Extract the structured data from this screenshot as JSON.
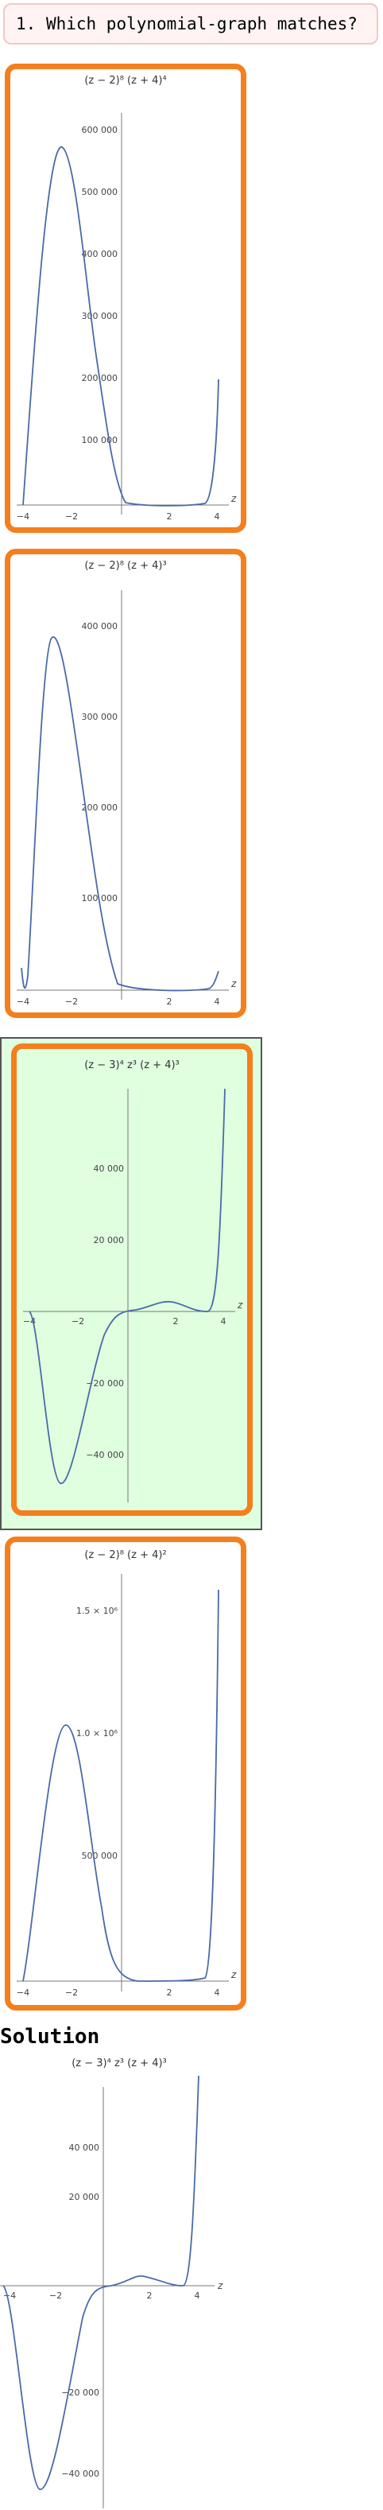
{
  "question": {
    "number": "1.",
    "text": "Which polynomial-graph matches?"
  },
  "solution_label": "Solution",
  "plots": [
    {
      "title": "(z − 2)⁸ (z + 4)⁴",
      "var": "z",
      "xticks": [
        "−4",
        "−2",
        "2",
        "4"
      ],
      "yticks": [
        "100 000",
        "200 000",
        "300 000",
        "400 000",
        "500 000",
        "600 000"
      ],
      "correct": false
    },
    {
      "title": "(z − 2)⁸ (z + 4)³",
      "var": "z",
      "xticks": [
        "−4",
        "−2",
        "2",
        "4"
      ],
      "yticks": [
        "100 000",
        "200 000",
        "300 000",
        "400 000"
      ],
      "correct": false
    },
    {
      "title": "(z − 3)⁴ z³ (z + 4)³",
      "var": "z",
      "xticks": [
        "−4",
        "−2",
        "2",
        "4"
      ],
      "yticks": [
        "−40 000",
        "−20 000",
        "20 000",
        "40 000"
      ],
      "correct": true
    },
    {
      "title": "(z − 2)⁸ (z + 4)²",
      "var": "z",
      "xticks": [
        "−4",
        "−2",
        "2",
        "4"
      ],
      "yticks": [
        "500 000",
        "1.0 × 10⁶",
        "1.5 × 10⁶"
      ],
      "correct": false
    }
  ],
  "solution_plot": {
    "title": "(z − 3)⁴ z³ (z + 4)³",
    "var": "z",
    "xticks": [
      "−4",
      "−2",
      "2",
      "4"
    ],
    "yticks": [
      "−40 000",
      "−20 000",
      "20 000",
      "40 000"
    ]
  },
  "chart_data": [
    {
      "type": "line",
      "title": "(z − 2)⁸ (z + 4)⁴",
      "xlabel": "z",
      "xlim": [
        -4.2,
        4.2
      ],
      "ylim": [
        0,
        620000
      ],
      "series": [
        {
          "x": [
            -4,
            -3.5,
            -3,
            -2.5,
            -2,
            -1.5,
            -1,
            -0.5,
            0,
            1,
            2,
            3,
            3.5,
            4
          ],
          "y": [
            0,
            162000,
            390625,
            538000,
            589824,
            535000,
            420000,
            295000,
            65536,
            625,
            0,
            2401,
            60000,
            200000
          ]
        }
      ]
    },
    {
      "type": "line",
      "title": "(z − 2)⁸ (z + 4)³",
      "xlabel": "z",
      "xlim": [
        -4.2,
        4.2
      ],
      "ylim": [
        0,
        420000
      ],
      "series": [
        {
          "x": [
            -4,
            -3.5,
            -3,
            -2.5,
            -2,
            -1.5,
            -1,
            0,
            1,
            2,
            3,
            4
          ],
          "y": [
            0,
            300000,
            390625,
            360000,
            260000,
            160000,
            90000,
            16384,
            125,
            0,
            343,
            30000
          ]
        }
      ]
    },
    {
      "type": "line",
      "title": "(z − 3)⁴ z³ (z + 4)³",
      "xlabel": "z",
      "xlim": [
        -4.2,
        4.2
      ],
      "ylim": [
        -52000,
        55000
      ],
      "series": [
        {
          "x": [
            -4,
            -3.5,
            -3,
            -2.5,
            -2,
            -1,
            0,
            1,
            1.5,
            2,
            3,
            3.5,
            4
          ],
          "y": [
            0,
            -40000,
            -47000,
            -38000,
            -25000,
            -3000,
            0,
            1900,
            2300,
            1700,
            0,
            6500,
            55000
          ]
        }
      ]
    },
    {
      "type": "line",
      "title": "(z − 2)⁸ (z + 4)²",
      "xlabel": "z",
      "xlim": [
        -4.2,
        4.2
      ],
      "ylim": [
        0,
        1700000
      ],
      "series": [
        {
          "x": [
            -4,
            -3,
            -2.5,
            -2,
            -1.5,
            -1,
            0,
            1,
            2,
            3,
            3.5,
            4
          ],
          "y": [
            0,
            390625,
            900000,
            1050000,
            850000,
            500000,
            40000,
            100,
            0,
            100,
            200000,
            1650000
          ]
        }
      ]
    }
  ]
}
